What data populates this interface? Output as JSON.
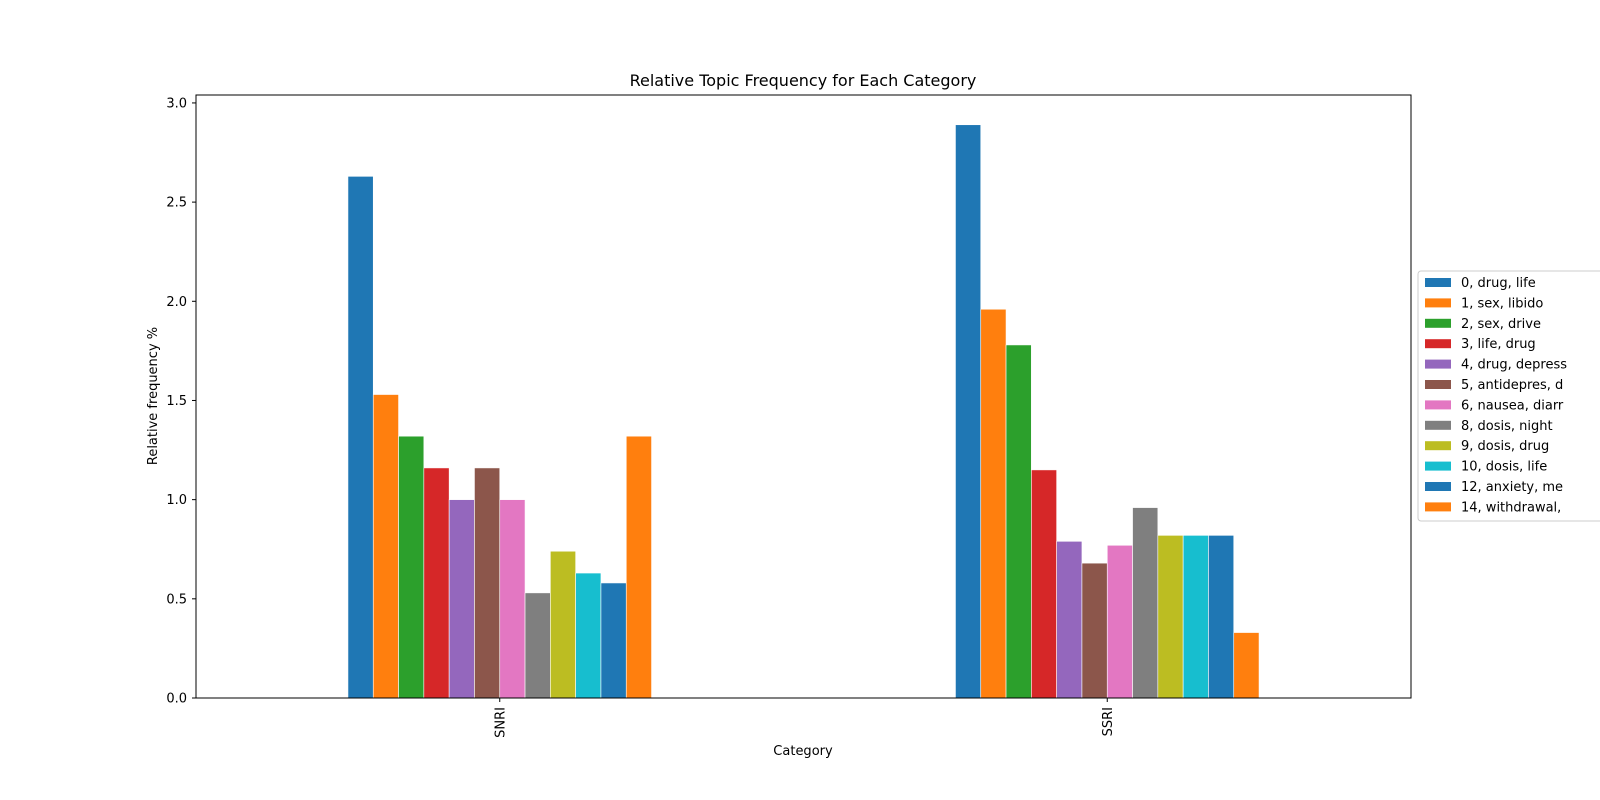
{
  "chart_data": {
    "type": "bar",
    "title": "Relative Topic Frequency for Each Category",
    "xlabel": "Category",
    "ylabel": "Relative frequency %",
    "categories": [
      "SNRI",
      "SSRI"
    ],
    "ylim": [
      0,
      3.04
    ],
    "yticks": [
      0.0,
      0.5,
      1.0,
      1.5,
      2.0,
      2.5,
      3.0
    ],
    "ytick_labels": [
      "0.0",
      "0.5",
      "1.0",
      "1.5",
      "2.0",
      "2.5",
      "3.0"
    ],
    "grid": false,
    "legend_position": "center-right",
    "series": [
      {
        "name": "0, drug, life",
        "color": "#1f77b4",
        "values": [
          2.63,
          2.89
        ]
      },
      {
        "name": "1, sex, libido",
        "color": "#ff7f0e",
        "values": [
          1.53,
          1.96
        ]
      },
      {
        "name": "2, sex, drive",
        "color": "#2ca02c",
        "values": [
          1.32,
          1.78
        ]
      },
      {
        "name": "3, life, drug",
        "color": "#d62728",
        "values": [
          1.16,
          1.15
        ]
      },
      {
        "name": "4, drug, depress",
        "color": "#9467bd",
        "values": [
          1.0,
          0.79
        ]
      },
      {
        "name": "5, antidepres, d",
        "color": "#8c564b",
        "values": [
          1.16,
          0.68
        ]
      },
      {
        "name": "6, nausea, diarr",
        "color": "#e377c2",
        "values": [
          1.0,
          0.77
        ]
      },
      {
        "name": "8, dosis, night",
        "color": "#7f7f7f",
        "values": [
          0.53,
          0.96
        ]
      },
      {
        "name": "9, dosis, drug",
        "color": "#bcbd22",
        "values": [
          0.74,
          0.82
        ]
      },
      {
        "name": "10, dosis, life",
        "color": "#17becf",
        "values": [
          0.63,
          0.82
        ]
      },
      {
        "name": "12, anxiety, me",
        "color": "#1f77b4",
        "values": [
          0.58,
          0.82
        ]
      },
      {
        "name": "14, withdrawal,",
        "color": "#ff7f0e",
        "values": [
          1.32,
          0.33
        ]
      }
    ]
  }
}
